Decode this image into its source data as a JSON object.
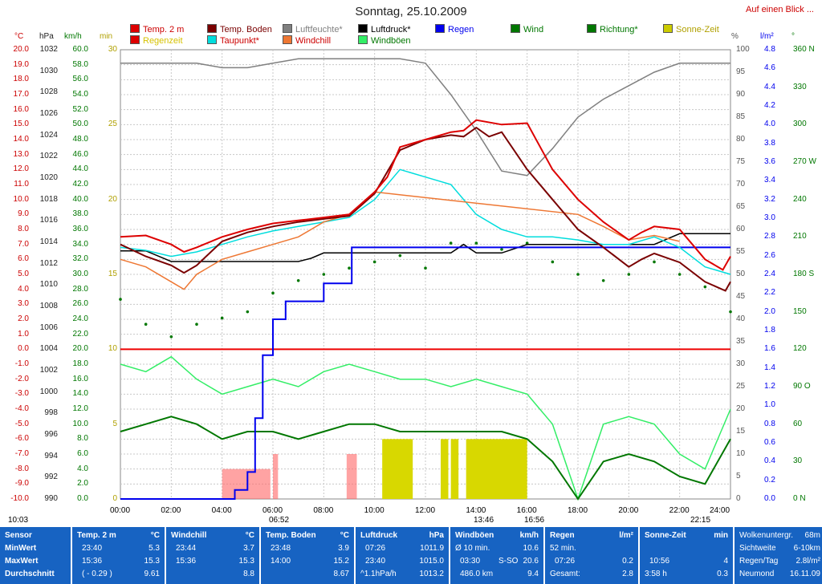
{
  "title": "Sonntag, 25.10.2009",
  "top_link": "Auf einen Blick ...",
  "legend": [
    {
      "label": "Temp. 2 m",
      "color": "#dd0000",
      "text": "#cc0000"
    },
    {
      "label": "Temp. Boden",
      "color": "#7a0000",
      "text": "#7a0000"
    },
    {
      "label": "Luftfeuchte*",
      "color": "#808080",
      "text": "#808080"
    },
    {
      "label": "Luftdruck*",
      "color": "#000000",
      "text": "#000000"
    },
    {
      "label": "Regen",
      "color": "#0000ee",
      "text": "#0000ee"
    },
    {
      "label": "Wind",
      "color": "#007700",
      "text": "#007700"
    },
    {
      "label": "Richtung*",
      "color": "#007700",
      "text": "#007700"
    },
    {
      "label": "Sonne-Zeit",
      "color": "#cccc00",
      "text": "#b0a000"
    },
    {
      "label": "Regenzeit",
      "color": "#dd0000",
      "text": "#d6c200"
    },
    {
      "label": "Taupunkt*",
      "color": "#00dddd",
      "text": "#cc0000"
    },
    {
      "label": "Windchill",
      "color": "#ee7733",
      "text": "#cc0000"
    },
    {
      "label": "Windböen",
      "color": "#33ee66",
      "text": "#007700"
    }
  ],
  "axis_headers": {
    "temp": "°C",
    "hpa": "hPa",
    "kmh": "km/h",
    "min": "min",
    "pct": "%",
    "lm2": "l/m²",
    "deg": "°"
  },
  "chart_data": {
    "type": "line",
    "title": "Sonntag, 25.10.2009",
    "x_ticks": [
      "00:00",
      "02:00",
      "04:00",
      "06:00",
      "08:00",
      "10:00",
      "12:00",
      "14:00",
      "16:00",
      "18:00",
      "20:00",
      "22:00",
      "24:00"
    ],
    "axes": {
      "temp_c": {
        "range": [
          -10,
          20
        ],
        "ticks": [
          "20.0",
          "19.0",
          "18.0",
          "17.0",
          "16.0",
          "15.0",
          "14.0",
          "13.0",
          "12.0",
          "11.0",
          "10.0",
          "9.0",
          "8.0",
          "7.0",
          "6.0",
          "5.0",
          "4.0",
          "3.0",
          "2.0",
          "1.0",
          "0.0",
          "-1.0",
          "-2.0",
          "-3.0",
          "-4.0",
          "-5.0",
          "-6.0",
          "-7.0",
          "-8.0",
          "-9.0",
          "-10.0"
        ]
      },
      "pressure_hpa": {
        "range": [
          990,
          1032
        ],
        "ticks": [
          "1032",
          "1030",
          "1028",
          "1026",
          "1024",
          "1022",
          "1020",
          "1018",
          "1016",
          "1014",
          "1012",
          "1010",
          "1008",
          "1006",
          "1004",
          "1002",
          "1000",
          "998",
          "996",
          "994",
          "992",
          "990"
        ]
      },
      "wind_kmh": {
        "range": [
          0,
          60
        ],
        "ticks": [
          "60.0",
          "58.0",
          "56.0",
          "54.0",
          "52.0",
          "50.0",
          "48.0",
          "46.0",
          "44.0",
          "42.0",
          "40.0",
          "38.0",
          "36.0",
          "34.0",
          "32.0",
          "30.0",
          "28.0",
          "26.0",
          "24.0",
          "22.0",
          "20.0",
          "18.0",
          "16.0",
          "14.0",
          "12.0",
          "10.0",
          "8.0",
          "6.0",
          "4.0",
          "2.0",
          "0.0"
        ]
      },
      "minutes": {
        "range": [
          0,
          30
        ],
        "ticks": [
          "30",
          "25",
          "20",
          "15",
          "10",
          "5",
          "0"
        ]
      },
      "humidity_pct": {
        "range": [
          0,
          100
        ],
        "ticks": [
          "100",
          "95",
          "90",
          "85",
          "80",
          "75",
          "70",
          "65",
          "60",
          "55",
          "50",
          "45",
          "40",
          "35",
          "30",
          "25",
          "20",
          "15",
          "10",
          "5",
          "0"
        ]
      },
      "rain_lm2": {
        "range": [
          0,
          5
        ],
        "ticks": [
          "4.8",
          "4.6",
          "4.4",
          "4.2",
          "4.0",
          "3.8",
          "3.6",
          "3.4",
          "3.2",
          "3.0",
          "2.8",
          "2.6",
          "2.4",
          "2.2",
          "2.0",
          "1.8",
          "1.6",
          "1.4",
          "1.2",
          "1.0",
          "0.8",
          "0.6",
          "0.4",
          "0.2",
          "0.0"
        ]
      },
      "direction_deg": {
        "range": [
          0,
          360
        ],
        "ticks": [
          "360 N",
          "330",
          "300",
          "270 W",
          "240",
          "210",
          "180 S",
          "150",
          "120",
          "90 O",
          "60",
          "30",
          "0 N"
        ]
      }
    },
    "series": [
      {
        "name": "Temp. 2 m",
        "color": "#dd0000",
        "axis": "temp_c",
        "x": [
          0,
          1,
          2,
          2.5,
          3,
          4,
          5,
          6,
          7,
          8,
          9,
          10,
          10.5,
          11,
          12,
          13,
          13.5,
          14,
          15,
          16,
          17,
          18,
          19,
          20,
          20.5,
          21,
          22,
          23,
          23.7,
          24
        ],
        "values": [
          7.5,
          7.6,
          7.0,
          6.5,
          6.8,
          7.5,
          8.0,
          8.4,
          8.6,
          8.8,
          9.0,
          10.5,
          11.5,
          13.5,
          14.0,
          14.5,
          14.6,
          15.3,
          15.0,
          15.1,
          12.0,
          10.0,
          8.5,
          7.3,
          7.8,
          8.2,
          8.0,
          6.0,
          5.3,
          6.2
        ]
      },
      {
        "name": "Temp. Boden",
        "color": "#7a0000",
        "axis": "temp_c",
        "x": [
          0,
          1,
          2,
          2.5,
          3,
          4,
          5,
          6,
          7,
          8,
          9,
          10,
          11,
          12,
          13,
          13.5,
          14,
          14.5,
          15,
          16,
          17,
          18,
          19,
          20,
          20.5,
          21,
          22,
          23,
          23.8,
          24
        ],
        "values": [
          7.0,
          6.2,
          5.6,
          5.1,
          5.6,
          7.2,
          7.8,
          8.2,
          8.5,
          8.7,
          8.9,
          10.4,
          13.3,
          14.0,
          14.3,
          14.2,
          14.8,
          14.2,
          14.5,
          12.0,
          10.0,
          8.0,
          6.8,
          5.5,
          6.0,
          6.4,
          5.8,
          4.5,
          3.9,
          4.5
        ]
      },
      {
        "name": "Luftfeuchte*",
        "color": "#808080",
        "axis": "humidity_pct",
        "x": [
          0,
          1,
          2,
          3,
          4,
          5,
          6,
          7,
          8,
          9,
          10,
          11,
          12,
          13,
          13.5,
          14,
          15,
          16,
          17,
          18,
          19,
          20,
          21,
          22,
          23,
          24
        ],
        "values": [
          97,
          97,
          97,
          97,
          96,
          96,
          97,
          98,
          98,
          98,
          98,
          98,
          97,
          90,
          86,
          82,
          73,
          72,
          78,
          85,
          89,
          92,
          95,
          97,
          97,
          97
        ]
      },
      {
        "name": "Luftdruck*",
        "color": "#000000",
        "axis": "pressure_hpa",
        "x": [
          0,
          1,
          2,
          3,
          4,
          5,
          6,
          7,
          7.5,
          8,
          9,
          10,
          11,
          12,
          13,
          13.5,
          14,
          15,
          16,
          17,
          18,
          19,
          20,
          21,
          22,
          23,
          24
        ],
        "values": [
          1013.2,
          1013.2,
          1012.2,
          1012.2,
          1012.2,
          1012.2,
          1012.2,
          1012.2,
          1012.5,
          1013.0,
          1013.0,
          1013.0,
          1013.0,
          1013.0,
          1013.0,
          1013.8,
          1013.0,
          1013.0,
          1013.8,
          1013.8,
          1013.8,
          1013.8,
          1013.8,
          1013.8,
          1014.8,
          1014.8,
          1014.8
        ]
      },
      {
        "name": "Regen",
        "color": "#0000ee",
        "axis": "rain_lm2",
        "x": [
          0,
          4,
          4.5,
          5,
          5.3,
          5.6,
          6.0,
          6.5,
          7.0,
          8,
          8.9,
          9.1,
          10,
          14,
          16,
          18,
          24
        ],
        "values": [
          0,
          0,
          0.1,
          0.3,
          0.9,
          1.6,
          2.0,
          2.2,
          2.2,
          2.4,
          2.4,
          2.8,
          2.8,
          2.8,
          2.8,
          2.8,
          2.8
        ]
      },
      {
        "name": "Taupunkt*",
        "color": "#00dddd",
        "axis": "temp_c",
        "x": [
          0,
          1,
          2,
          3,
          4,
          5,
          6,
          7,
          8,
          9,
          10,
          11,
          12,
          13,
          14,
          15,
          16,
          17,
          18,
          19,
          20,
          21,
          22,
          23,
          24
        ],
        "values": [
          6.8,
          6.6,
          6.2,
          6.5,
          7.0,
          7.5,
          7.9,
          8.2,
          8.5,
          8.8,
          10.0,
          12.0,
          11.5,
          11.0,
          9.0,
          8.0,
          7.5,
          7.5,
          7.3,
          7.0,
          7.0,
          7.5,
          6.8,
          5.5,
          5.0
        ]
      },
      {
        "name": "Windchill",
        "color": "#ee7733",
        "axis": "temp_c",
        "x": [
          0,
          1,
          2,
          2.5,
          3,
          4,
          5,
          6,
          7,
          8,
          9,
          10,
          18,
          19,
          20,
          21,
          22
        ],
        "values": [
          6.0,
          5.5,
          4.5,
          4.0,
          5.0,
          6.0,
          6.5,
          7.0,
          7.5,
          8.5,
          9.0,
          10.5,
          9.0,
          8.2,
          7.3,
          7.6,
          7.2
        ]
      },
      {
        "name": "Wind",
        "color": "#007700",
        "axis": "wind_kmh",
        "x": [
          0,
          1,
          2,
          3,
          4,
          5,
          6,
          7,
          8,
          9,
          10,
          11,
          12,
          13,
          14,
          15,
          16,
          17,
          18,
          19,
          20,
          21,
          22,
          23,
          24
        ],
        "values": [
          9,
          10,
          11,
          10,
          8,
          9,
          9,
          8,
          9,
          10,
          10,
          9,
          9,
          9,
          9,
          9,
          8,
          5,
          0,
          5,
          6,
          5,
          3,
          2,
          8
        ]
      },
      {
        "name": "Windböen",
        "color": "#33ee66",
        "axis": "wind_kmh",
        "x": [
          0,
          1,
          2,
          3,
          4,
          5,
          6,
          7,
          8,
          9,
          10,
          11,
          12,
          13,
          14,
          15,
          16,
          17,
          18,
          19,
          20,
          21,
          22,
          23,
          24
        ],
        "values": [
          18,
          17,
          19,
          16,
          14,
          15,
          16,
          15,
          17,
          18,
          17,
          16,
          16,
          15,
          16,
          15,
          14,
          10,
          0,
          10,
          11,
          10,
          6,
          4,
          12
        ]
      },
      {
        "name": "Richtung*",
        "color": "#007700",
        "axis": "direction_deg",
        "x": [
          0,
          1,
          2,
          3,
          4,
          5,
          6,
          7,
          8,
          9,
          10,
          11,
          12,
          13,
          14,
          15,
          16,
          17,
          18,
          19,
          20,
          21,
          22,
          23,
          24
        ],
        "values": [
          160,
          140,
          130,
          140,
          145,
          150,
          165,
          175,
          180,
          185,
          190,
          195,
          185,
          205,
          205,
          200,
          205,
          190,
          180,
          175,
          180,
          190,
          180,
          170,
          150
        ]
      }
    ],
    "sunshine_minutes": [
      {
        "from": 10.3,
        "to": 11.5,
        "value": 4
      },
      {
        "from": 12.6,
        "to": 12.9,
        "value": 4
      },
      {
        "from": 13.0,
        "to": 13.3,
        "value": 4
      },
      {
        "from": 13.6,
        "to": 16.0,
        "value": 4
      }
    ],
    "rain_minutes": [
      {
        "from": 4.0,
        "to": 5.9,
        "value": 2
      },
      {
        "from": 6.0,
        "to": 6.2,
        "value": 3
      },
      {
        "from": 8.9,
        "to": 9.3,
        "value": 3
      }
    ],
    "reference_line": {
      "axis": "temp_c",
      "value": 0
    }
  },
  "marker_labels": [
    {
      "text": "10:03",
      "x": 10
    },
    {
      "text": "06:52",
      "x": 335
    },
    {
      "text": "13:46",
      "x": 590
    },
    {
      "text": "16:56",
      "x": 653
    },
    {
      "text": "22:15",
      "x": 860
    }
  ],
  "summary": {
    "row_labels": [
      "Sensor",
      "MinWert",
      "MaxWert",
      "Durchschnitt"
    ],
    "temp": {
      "header": "Temp. 2 m",
      "unit": "°C",
      "min_time": "23:40",
      "min": "5.3",
      "max_time": "15:36",
      "max": "15.3",
      "avg_note": "( - 0.29 )",
      "avg": "9.61"
    },
    "windchill": {
      "header": "Windchill",
      "unit": "°C",
      "min_time": "23:44",
      "min": "3.7",
      "max_time": "15:36",
      "max": "15.3",
      "avg": "8.8"
    },
    "soil": {
      "header": "Temp. Boden",
      "unit": "°C",
      "min_time": "23:48",
      "min": "3.9",
      "max_time": "14:00",
      "max": "15.2",
      "avg": "8.67"
    },
    "pressure": {
      "header": "Luftdruck",
      "unit": "hPa",
      "min_time": "07:26",
      "min": "1011.9",
      "max_time": "23:40",
      "max": "1015.0",
      "avg_note": "^1.1hPa/h",
      "avg": "1013.2"
    },
    "gusts": {
      "header": "Windböen",
      "unit": "km/h",
      "r1_label": "Ø 10 min.",
      "r1_val": "10.6",
      "r2_label": "03:30",
      "r2_dir": "S-SO",
      "r2_val": "20.6",
      "r3_label": "486.0 km",
      "r3_val": "9.4"
    },
    "rain": {
      "header": "Regen",
      "unit": "l/m²",
      "r1_label": "52 min.",
      "r2_label": "07:26",
      "r2_val": "0.2",
      "r3_label": "Gesamt:",
      "r3_val": "2.8"
    },
    "sun": {
      "header": "Sonne-Zeit",
      "unit": "min",
      "r2_label": "10:56",
      "r2_val": "4",
      "r3_label": "3:58 h",
      "r3_val": "0.3"
    },
    "extra": [
      {
        "label": "Wolkenuntergr.",
        "value": "68m"
      },
      {
        "label": "Sichtweite",
        "value": "6-10km"
      },
      {
        "label": "Regen/Tag",
        "value": "2.8l/m²"
      },
      {
        "label": "Neumond",
        "value": "16.11.09"
      }
    ]
  }
}
